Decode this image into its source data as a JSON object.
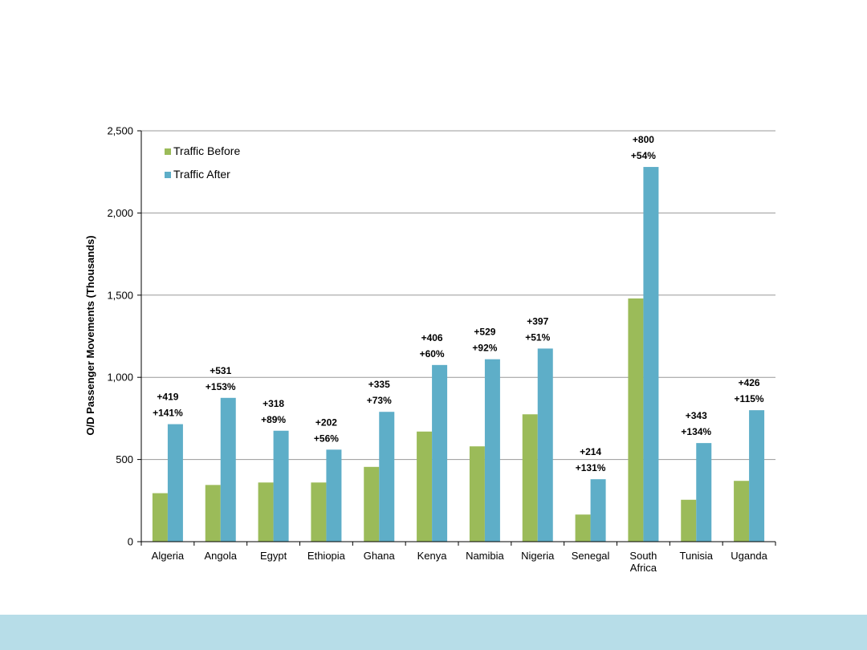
{
  "colors": {
    "before": "#9bbb59",
    "after": "#5eaec8",
    "footer": "#b7dde8",
    "grid": "#999999",
    "axis": "#000000"
  },
  "chart_data": {
    "type": "bar",
    "title": "",
    "xlabel": "",
    "ylabel": "O/D Passenger Movements (Thousands)",
    "ylim": [
      0,
      2500
    ],
    "yticks": [
      0,
      500,
      1000,
      1500,
      2000,
      2500
    ],
    "ytick_labels": [
      "0",
      "500",
      "1,000",
      "1,500",
      "2,000",
      "2,500"
    ],
    "grid": true,
    "legend_position": "top-left",
    "categories": [
      [
        "Algeria"
      ],
      [
        "Angola"
      ],
      [
        "Egypt"
      ],
      [
        "Ethiopia"
      ],
      [
        "Ghana"
      ],
      [
        "Kenya"
      ],
      [
        "Namibia"
      ],
      [
        "Nigeria"
      ],
      [
        "Senegal"
      ],
      [
        "South",
        "Africa"
      ],
      [
        "Tunisia"
      ],
      [
        "Uganda"
      ]
    ],
    "series": [
      {
        "name": "Traffic Before",
        "values": [
          295,
          345,
          360,
          360,
          455,
          670,
          580,
          775,
          165,
          1480,
          255,
          370
        ]
      },
      {
        "name": "Traffic After",
        "values": [
          715,
          875,
          675,
          560,
          790,
          1075,
          1110,
          1175,
          380,
          2280,
          600,
          800
        ]
      }
    ],
    "annotations": [
      [
        "+419",
        "+141%"
      ],
      [
        "+531",
        "+153%"
      ],
      [
        "+318",
        "+89%"
      ],
      [
        "+202",
        "+56%"
      ],
      [
        "+335",
        "+73%"
      ],
      [
        "+406",
        "+60%"
      ],
      [
        "+529",
        "+92%"
      ],
      [
        "+397",
        "+51%"
      ],
      [
        "+214",
        "+131%"
      ],
      [
        "+800",
        "+54%"
      ],
      [
        "+343",
        "+134%"
      ],
      [
        "+426",
        "+115%"
      ]
    ]
  }
}
